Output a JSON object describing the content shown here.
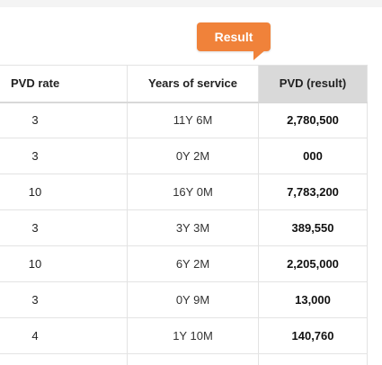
{
  "callout": {
    "label": "Result",
    "color": "#f0823a"
  },
  "table": {
    "headers": {
      "rate": "PVD rate",
      "years": "Years of service",
      "result": "PVD (result)"
    },
    "rows": [
      {
        "rate": "3",
        "years": "11Y 6M",
        "result": "2,780,500"
      },
      {
        "rate": "3",
        "years": "0Y 2M",
        "result": "000"
      },
      {
        "rate": "10",
        "years": "16Y 0M",
        "result": "7,783,200"
      },
      {
        "rate": "3",
        "years": "3Y 3M",
        "result": "389,550"
      },
      {
        "rate": "10",
        "years": "6Y 2M",
        "result": "2,205,000"
      },
      {
        "rate": "3",
        "years": "0Y 9M",
        "result": "13,000"
      },
      {
        "rate": "4",
        "years": "1Y 10M",
        "result": "140,760"
      }
    ]
  }
}
